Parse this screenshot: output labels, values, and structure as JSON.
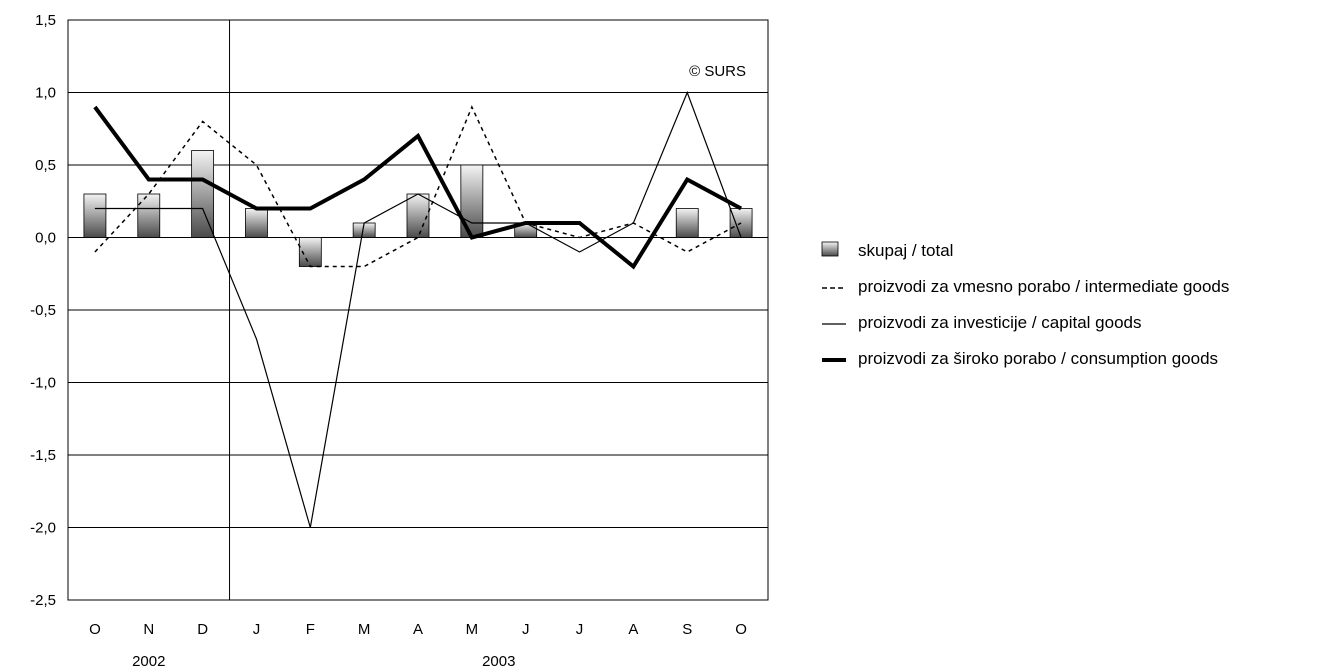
{
  "chart_data": {
    "type": "bar",
    "title": "",
    "xlabel": "",
    "ylabel": "",
    "ylim": [
      -2.5,
      1.5
    ],
    "yticks": [
      1.5,
      1.0,
      0.5,
      0.0,
      -0.5,
      -1.0,
      -1.5,
      -2.0,
      -2.5
    ],
    "ytick_labels": [
      "1,5",
      "1,0",
      "0,5",
      "0,0",
      "-0,5",
      "-1,0",
      "-1,5",
      "-2,0",
      "-2,5"
    ],
    "categories": [
      "O",
      "N",
      "D",
      "J",
      "F",
      "M",
      "A",
      "M",
      "J",
      "J",
      "A",
      "S",
      "O"
    ],
    "year_labels": [
      {
        "label": "2002",
        "position": "under-first-three-months"
      },
      {
        "label": "2003",
        "position": "under-remaining-months"
      }
    ],
    "year_separator_after_index": 2,
    "grid": true,
    "legend_position": "right",
    "annotation": "© SURS",
    "series": [
      {
        "name": "skupaj / total",
        "kind": "bar",
        "values": [
          0.3,
          0.3,
          0.6,
          0.2,
          -0.2,
          0.1,
          0.3,
          0.5,
          0.1,
          null,
          null,
          0.2,
          0.2
        ]
      },
      {
        "name": "proizvodi za vmesno porabo / intermediate goods",
        "kind": "line",
        "style": "dashed",
        "values": [
          -0.1,
          0.3,
          0.8,
          0.5,
          -0.2,
          -0.2,
          0.0,
          0.9,
          0.1,
          0.0,
          0.1,
          -0.1,
          0.1
        ]
      },
      {
        "name": "proizvodi za investicije / capital goods",
        "kind": "line",
        "style": "thin",
        "values": [
          0.2,
          0.2,
          0.2,
          -0.7,
          -2.0,
          0.1,
          0.3,
          0.1,
          0.1,
          -0.1,
          0.1,
          1.0,
          0.0
        ]
      },
      {
        "name": "proizvodi za široko porabo / consumption goods",
        "kind": "line",
        "style": "thick",
        "values": [
          0.9,
          0.4,
          0.4,
          0.2,
          0.2,
          0.4,
          0.7,
          0.0,
          0.1,
          0.1,
          -0.2,
          0.4,
          0.2
        ]
      }
    ]
  }
}
